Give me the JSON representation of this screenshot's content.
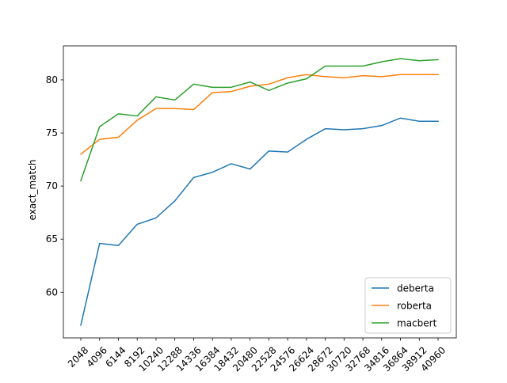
{
  "chart_data": {
    "type": "line",
    "title": "",
    "xlabel": "",
    "ylabel": "exact_match",
    "x": [
      2048,
      4096,
      6144,
      8192,
      10240,
      12288,
      14336,
      16384,
      18432,
      20480,
      22528,
      24576,
      26624,
      28672,
      30720,
      32768,
      34816,
      36864,
      38912,
      40960
    ],
    "x_tick_labels": [
      "2048",
      "4096",
      "6144",
      "8192",
      "10240",
      "12288",
      "14336",
      "16384",
      "18432",
      "20480",
      "22528",
      "24576",
      "26624",
      "28672",
      "30720",
      "32768",
      "34816",
      "36864",
      "38912",
      "40960"
    ],
    "y_ticks": [
      60,
      65,
      70,
      75,
      80
    ],
    "ylim": [
      55.7,
      83.2
    ],
    "grid": false,
    "legend_position": "lower right",
    "series": [
      {
        "name": "deberta",
        "color": "#1f77b4",
        "values": [
          56.9,
          64.6,
          64.4,
          66.4,
          67.0,
          68.6,
          70.8,
          71.3,
          72.1,
          71.6,
          73.3,
          73.2,
          74.4,
          75.4,
          75.3,
          75.4,
          75.7,
          76.4,
          76.1,
          76.1
        ]
      },
      {
        "name": "roberta",
        "color": "#ff7f0e",
        "values": [
          73.0,
          74.4,
          74.6,
          76.2,
          77.3,
          77.3,
          77.2,
          78.8,
          78.9,
          79.4,
          79.6,
          80.2,
          80.5,
          80.3,
          80.2,
          80.4,
          80.3,
          80.5,
          80.5,
          80.5
        ]
      },
      {
        "name": "macbert",
        "color": "#2ca02c",
        "values": [
          70.5,
          75.6,
          76.8,
          76.6,
          78.4,
          78.1,
          79.6,
          79.3,
          79.3,
          79.8,
          79.0,
          79.7,
          80.1,
          81.3,
          81.3,
          81.3,
          81.7,
          82.0,
          81.8,
          81.9
        ]
      }
    ]
  }
}
